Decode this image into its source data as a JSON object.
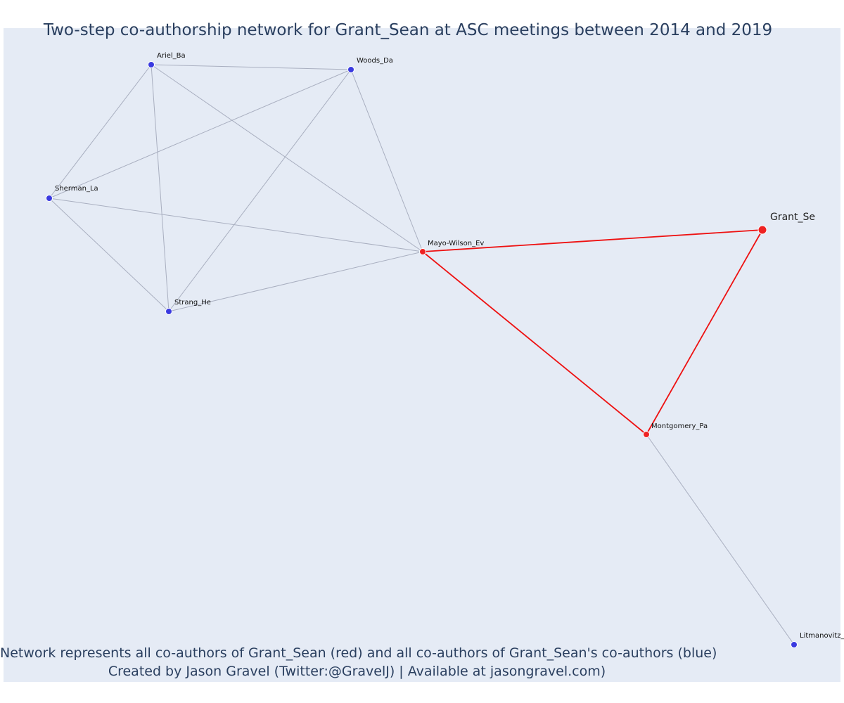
{
  "title": "Two-step co-authorship network for Grant_Sean at ASC meetings between 2014 and 2019",
  "footer": {
    "line1": "Network represents all co-authors of Grant_Sean (red) and all co-authors of Grant_Sean's co-authors (blue)",
    "line2": "Created by Jason Gravel (Twitter:@GravelJ) | Available at jasongravel.com)"
  },
  "colors": {
    "background": "#e5ebf5",
    "first_degree": "#ee2222",
    "second_degree": "#3a3ae0",
    "edge_first": "#ee1111",
    "edge_other": "#a9afc0"
  },
  "network": {
    "nodes": [
      {
        "id": "Grant_Se",
        "label": "Grant_Se",
        "group": "focal"
      },
      {
        "id": "Mayo-Wilson_Ev",
        "label": "Mayo-Wilson_Ev",
        "group": "coauthor"
      },
      {
        "id": "Montgomery_Pa",
        "label": "Montgomery_Pa",
        "group": "coauthor"
      },
      {
        "id": "Ariel_Ba",
        "label": "Ariel_Ba",
        "group": "second"
      },
      {
        "id": "Woods_Da",
        "label": "Woods_Da",
        "group": "second"
      },
      {
        "id": "Sherman_La",
        "label": "Sherman_La",
        "group": "second"
      },
      {
        "id": "Strang_He",
        "label": "Strang_He",
        "group": "second"
      },
      {
        "id": "Litmanovitz_",
        "label": "Litmanovitz_",
        "group": "second"
      }
    ],
    "edges": [
      {
        "source": "Grant_Se",
        "target": "Mayo-Wilson_Ev",
        "type": "first"
      },
      {
        "source": "Grant_Se",
        "target": "Montgomery_Pa",
        "type": "first"
      },
      {
        "source": "Mayo-Wilson_Ev",
        "target": "Montgomery_Pa",
        "type": "first"
      },
      {
        "source": "Ariel_Ba",
        "target": "Woods_Da",
        "type": "other"
      },
      {
        "source": "Ariel_Ba",
        "target": "Sherman_La",
        "type": "other"
      },
      {
        "source": "Ariel_Ba",
        "target": "Strang_He",
        "type": "other"
      },
      {
        "source": "Ariel_Ba",
        "target": "Mayo-Wilson_Ev",
        "type": "other"
      },
      {
        "source": "Woods_Da",
        "target": "Sherman_La",
        "type": "other"
      },
      {
        "source": "Woods_Da",
        "target": "Strang_He",
        "type": "other"
      },
      {
        "source": "Woods_Da",
        "target": "Mayo-Wilson_Ev",
        "type": "other"
      },
      {
        "source": "Sherman_La",
        "target": "Strang_He",
        "type": "other"
      },
      {
        "source": "Sherman_La",
        "target": "Mayo-Wilson_Ev",
        "type": "other"
      },
      {
        "source": "Strang_He",
        "target": "Mayo-Wilson_Ev",
        "type": "other"
      },
      {
        "source": "Montgomery_Pa",
        "target": "Litmanovitz_",
        "type": "other"
      }
    ]
  }
}
